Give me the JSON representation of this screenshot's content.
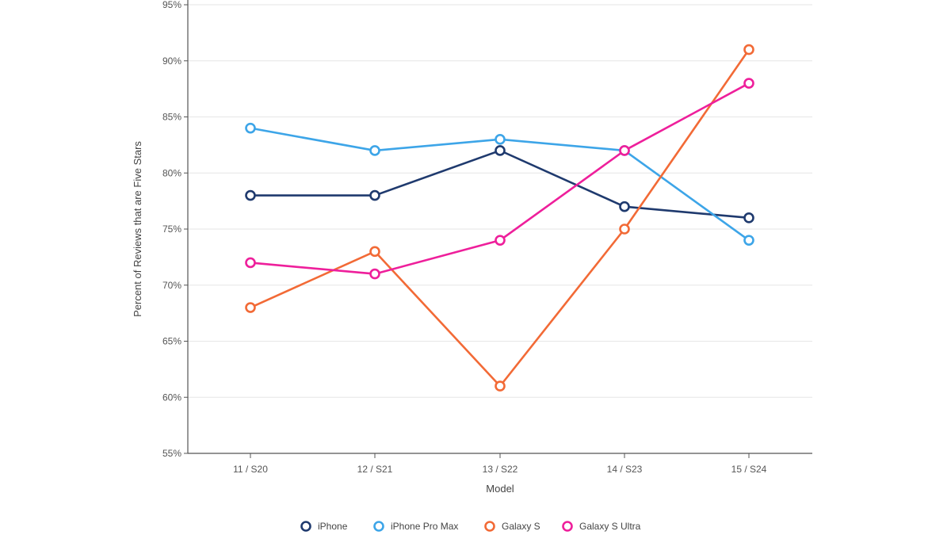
{
  "chart_data": {
    "type": "line",
    "title": "",
    "xlabel": "Model",
    "ylabel": "Percent of Reviews that are Five Stars",
    "categories": [
      "11 / S20",
      "12 / S21",
      "13 / S22",
      "14 / S23",
      "15 / S24"
    ],
    "ylim": [
      55,
      95
    ],
    "yticks": [
      55,
      60,
      65,
      70,
      75,
      80,
      85,
      90,
      95
    ],
    "ytick_labels": [
      "55%",
      "60%",
      "65%",
      "70%",
      "75%",
      "80%",
      "85%",
      "90%",
      "95%"
    ],
    "grid": true,
    "legend_position": "bottom-center",
    "series": [
      {
        "name": "iPhone",
        "color": "#1f3a6e",
        "values": [
          78,
          78,
          82,
          77,
          76
        ]
      },
      {
        "name": "iPhone Pro Max",
        "color": "#3da5e8",
        "values": [
          84,
          82,
          83,
          82,
          74
        ]
      },
      {
        "name": "Galaxy S",
        "color": "#f26a36",
        "values": [
          68,
          73,
          61,
          75,
          91
        ]
      },
      {
        "name": "Galaxy S Ultra",
        "color": "#ee1f9b",
        "values": [
          72,
          71,
          74,
          82,
          88
        ]
      }
    ]
  }
}
